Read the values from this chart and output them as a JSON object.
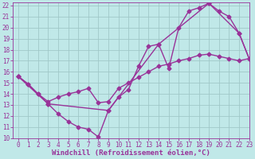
{
  "xlabel": "Windchill (Refroidissement éolien,°C)",
  "xlim": [
    -0.5,
    23
  ],
  "ylim": [
    10,
    22.3
  ],
  "xticks": [
    0,
    1,
    2,
    3,
    4,
    5,
    6,
    7,
    8,
    9,
    10,
    11,
    12,
    13,
    14,
    15,
    16,
    17,
    18,
    19,
    20,
    21,
    22,
    23
  ],
  "yticks": [
    10,
    11,
    12,
    13,
    14,
    15,
    16,
    17,
    18,
    19,
    20,
    21,
    22
  ],
  "bg_color": "#c0e8e8",
  "grid_color": "#a0c8c8",
  "line_color": "#993399",
  "line1_x": [
    0,
    1,
    2,
    3,
    4,
    5,
    6,
    7,
    8,
    9,
    10,
    11,
    12,
    13,
    14,
    15,
    16,
    17,
    18,
    19,
    20,
    21,
    22,
    23
  ],
  "line1_y": [
    15.6,
    14.9,
    14.0,
    13.1,
    12.2,
    11.5,
    11.0,
    10.8,
    10.1,
    12.5,
    13.7,
    14.4,
    16.5,
    18.3,
    18.5,
    16.3,
    20.0,
    21.5,
    21.8,
    22.2,
    21.5,
    21.0,
    19.5,
    17.2
  ],
  "line2_x": [
    0,
    1,
    2,
    3,
    4,
    5,
    6,
    7,
    8,
    9,
    10,
    11,
    12,
    13,
    14,
    15,
    16,
    17,
    18,
    19,
    20,
    21,
    22,
    23
  ],
  "line2_y": [
    15.6,
    14.9,
    14.0,
    13.3,
    13.7,
    14.0,
    14.2,
    14.5,
    13.2,
    13.3,
    14.5,
    15.0,
    15.5,
    16.0,
    16.5,
    16.7,
    17.0,
    17.2,
    17.5,
    17.6,
    17.4,
    17.2,
    17.0,
    17.2
  ],
  "line3_x": [
    0,
    3,
    9,
    14,
    19,
    22,
    23
  ],
  "line3_y": [
    15.6,
    13.1,
    12.5,
    18.5,
    22.2,
    19.5,
    17.2
  ],
  "marker": "D",
  "markersize": 2.5,
  "linewidth": 1.0,
  "tick_fontsize": 5.5,
  "label_fontsize": 6.5
}
